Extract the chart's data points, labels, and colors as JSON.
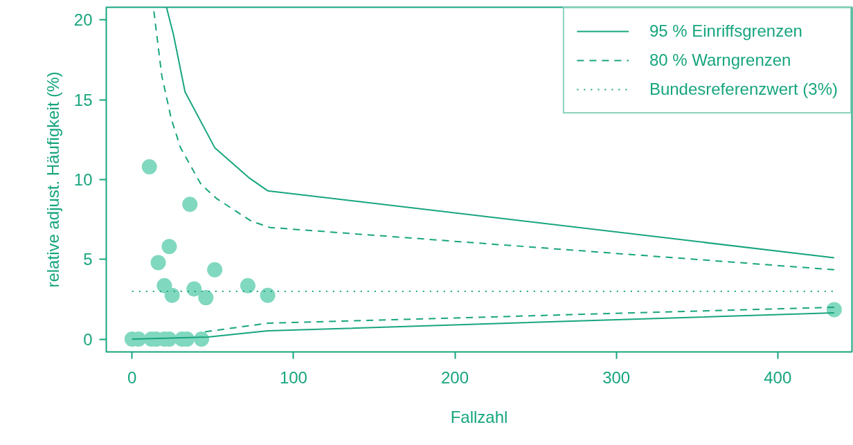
{
  "chart_data": {
    "type": "scatter",
    "xlabel": "Fallzahl",
    "ylabel": "relative adjust. Häufigkeit (%)",
    "xlim": [
      -16,
      446
    ],
    "ylim": [
      -0.8,
      20.8
    ],
    "xticks": [
      0,
      100,
      200,
      300,
      400
    ],
    "yticks": [
      0,
      5,
      10,
      15,
      20
    ],
    "grid": false,
    "legend": "top right",
    "series": [
      {
        "marker": "circle",
        "color": "#80d8bf",
        "x": [
          10.7,
          35.8,
          23,
          16.2,
          20,
          24.8,
          38.4,
          51.2,
          45.7,
          71.7,
          84,
          435,
          0,
          4,
          12,
          15,
          20,
          23,
          31,
          34,
          43
        ],
        "values": [
          10.8,
          8.45,
          5.8,
          4.8,
          3.35,
          2.75,
          3.15,
          4.35,
          2.6,
          3.35,
          2.75,
          1.85,
          0,
          0,
          0,
          0,
          0,
          0,
          0,
          0,
          0
        ]
      },
      {
        "type": "line",
        "name": "95 % Einriffsgrenzen",
        "color": "#17a57e",
        "line_style": "solid",
        "x": [
          21.3,
          25.6,
          32.8,
          51.2,
          72.6,
          84,
          435
        ],
        "values": [
          20.8,
          19.1,
          15.5,
          12.0,
          10.1,
          9.3,
          5.1
        ]
      },
      {
        "type": "line",
        "color": "#17a57e",
        "line_style": "solid",
        "x": [
          0,
          47,
          84,
          435
        ],
        "values": [
          0,
          0.13,
          0.52,
          1.65
        ]
      },
      {
        "type": "line",
        "name": "80 % Warngrenzen",
        "color": "#17a57e",
        "line_style": "dashed",
        "x": [
          13.2,
          18.4,
          24.3,
          30,
          42.7,
          52.5,
          73.8,
          85.4,
          435
        ],
        "values": [
          20.8,
          16.5,
          13.8,
          12.0,
          9.7,
          8.8,
          7.4,
          7.0,
          4.35
        ]
      },
      {
        "type": "line",
        "color": "#17a57e",
        "line_style": "dashed",
        "x": [
          43,
          84,
          435
        ],
        "values": [
          0.43,
          1.0,
          2.0
        ]
      }
    ],
    "ref_lines": [
      {
        "axis": "y",
        "value": 3,
        "label": "Bundesreferenzwert (3%)",
        "color": "#17a57e",
        "line_style": "dotted"
      }
    ]
  }
}
